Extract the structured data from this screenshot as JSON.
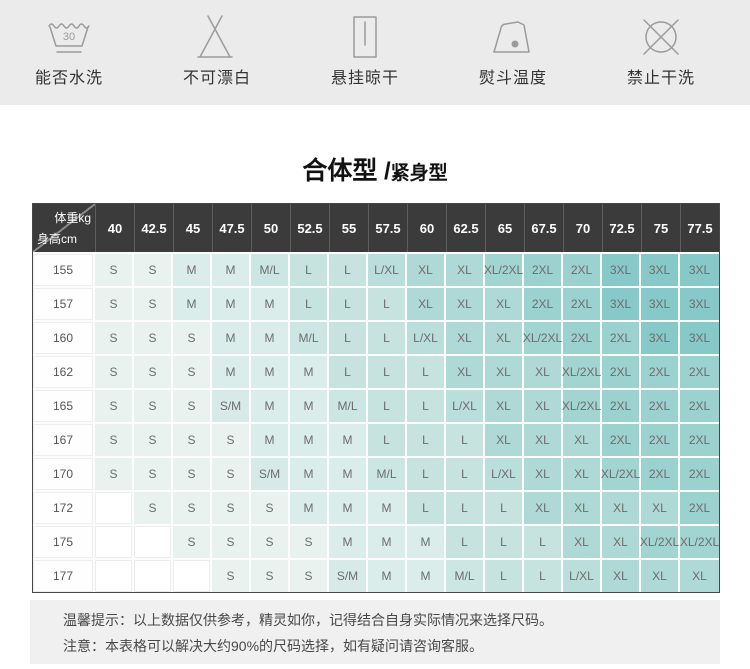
{
  "care_icons": {
    "items": [
      {
        "name": "wash",
        "label": "能否水洗",
        "number": "30"
      },
      {
        "name": "no-bleach",
        "label": "不可漂白"
      },
      {
        "name": "hang-dry",
        "label": "悬挂晾干"
      },
      {
        "name": "iron",
        "label": "熨斗温度"
      },
      {
        "name": "no-dry-clean",
        "label": "禁止干洗"
      }
    ]
  },
  "title": {
    "primary": "合体型",
    "separator": " /",
    "secondary": "紧身型"
  },
  "size_table": {
    "corner": {
      "weight_label": "体重kg",
      "height_label": "身高cm"
    },
    "weight_columns": [
      "40",
      "42.5",
      "45",
      "47.5",
      "50",
      "52.5",
      "55",
      "57.5",
      "60",
      "62.5",
      "65",
      "67.5",
      "70",
      "72.5",
      "75",
      "77.5"
    ],
    "rows": [
      {
        "height": "155",
        "sizes": [
          "S",
          "S",
          "M",
          "M",
          "M/L",
          "L",
          "L",
          "L/XL",
          "XL",
          "XL",
          "XL/2XL",
          "2XL",
          "2XL",
          "3XL",
          "3XL",
          "3XL"
        ]
      },
      {
        "height": "157",
        "sizes": [
          "S",
          "S",
          "M",
          "M",
          "M",
          "L",
          "L",
          "L",
          "XL",
          "XL",
          "XL",
          "2XL",
          "2XL",
          "3XL",
          "3XL",
          "3XL"
        ]
      },
      {
        "height": "160",
        "sizes": [
          "S",
          "S",
          "S",
          "M",
          "M",
          "M/L",
          "L",
          "L",
          "L/XL",
          "XL",
          "XL",
          "XL/2XL",
          "2XL",
          "2XL",
          "3XL",
          "3XL"
        ]
      },
      {
        "height": "162",
        "sizes": [
          "S",
          "S",
          "S",
          "M",
          "M",
          "M",
          "L",
          "L",
          "L",
          "XL",
          "XL",
          "XL",
          "XL/2XL",
          "2XL",
          "2XL",
          "2XL"
        ]
      },
      {
        "height": "165",
        "sizes": [
          "S",
          "S",
          "S",
          "S/M",
          "M",
          "M",
          "M/L",
          "L",
          "L",
          "L/XL",
          "XL",
          "XL",
          "XL/2XL",
          "2XL",
          "2XL",
          "2XL"
        ]
      },
      {
        "height": "167",
        "sizes": [
          "S",
          "S",
          "S",
          "S",
          "M",
          "M",
          "M",
          "L",
          "L",
          "L",
          "XL",
          "XL",
          "XL",
          "2XL",
          "2XL",
          "2XL"
        ]
      },
      {
        "height": "170",
        "sizes": [
          "S",
          "S",
          "S",
          "S",
          "S/M",
          "M",
          "M",
          "M/L",
          "L",
          "L",
          "L/XL",
          "XL",
          "XL",
          "XL/2XL",
          "2XL",
          "2XL"
        ]
      },
      {
        "height": "172",
        "sizes": [
          "",
          "S",
          "S",
          "S",
          "S",
          "M",
          "M",
          "M",
          "L",
          "L",
          "L",
          "XL",
          "XL",
          "XL",
          "XL",
          "2XL"
        ]
      },
      {
        "height": "175",
        "sizes": [
          "",
          "",
          "S",
          "S",
          "S",
          "S",
          "M",
          "M",
          "M",
          "L",
          "L",
          "L",
          "XL",
          "XL",
          "XL/2XL",
          "XL/2XL"
        ]
      },
      {
        "height": "177",
        "sizes": [
          "",
          "",
          "",
          "S",
          "S",
          "S",
          "S/M",
          "M",
          "M",
          "M/L",
          "L",
          "L",
          "L/XL",
          "XL",
          "XL",
          "XL"
        ]
      }
    ],
    "size_colors": {
      "S": "#e9f2ef",
      "S/M": "#d7eae8",
      "M": "#dbedeb",
      "M/L": "#cce6e4",
      "L": "#c7e3e0",
      "L/XL": "#b9dedb",
      "XL": "#aed9d6",
      "XL/2XL": "#a2d4d2",
      "2XL": "#9bd2cf",
      "3XL": "#86c9c8"
    },
    "empty_color": "#ffffff",
    "header_bg": "#3b3b3b"
  },
  "notes": {
    "line1": "温馨提示：以上数据仅供参考，精灵如你，记得结合自身实际情况来选择尺码。",
    "line2": "注意：本表格可以解决大约90%的尺码选择，如有疑问请咨询客服。"
  }
}
